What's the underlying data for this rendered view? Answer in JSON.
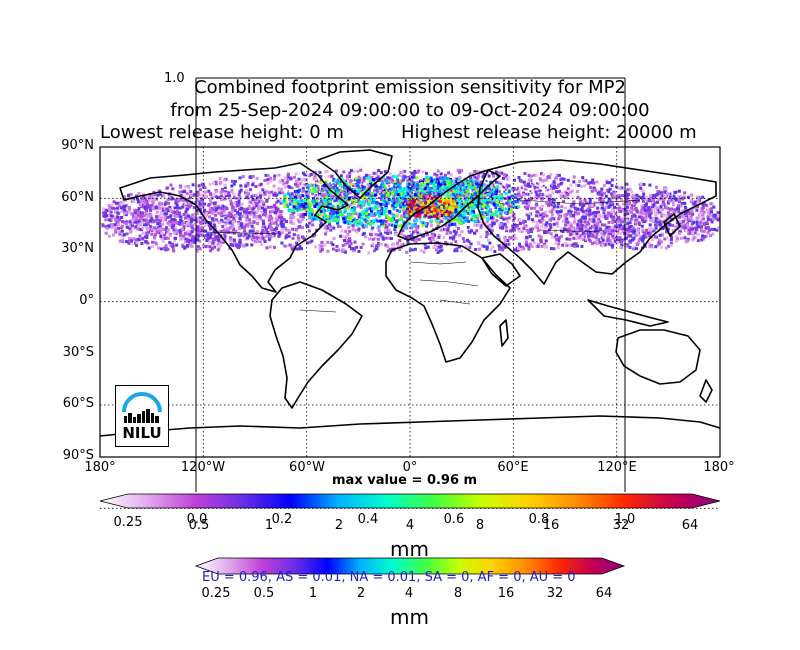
{
  "overlay_tick": "1.0",
  "title": {
    "line1": "Combined footprint emission sensitivity for MP2",
    "line2": "from 25-Sep-2024 09:00:00 to 09-Oct-2024 09:00:00",
    "line3_left": "Lowest release height: 0 m",
    "line3_right": "Highest release height: 20000 m"
  },
  "lat_labels": [
    "90°N",
    "60°N",
    "30°N",
    "0°",
    "30°S",
    "60°S",
    "90°S"
  ],
  "lon_labels": [
    "180°",
    "120°W",
    "60°W",
    "0°",
    "60°E",
    "120°E",
    "180°"
  ],
  "max_value_label": "max value = 0.96 m",
  "logo_text": "NILU",
  "colorbar_top": {
    "ticks": [
      "0.25",
      "0.5",
      "1",
      "2",
      "4",
      "8",
      "16",
      "32",
      "64"
    ],
    "overlay_ticks": [
      "0.0",
      "0.2",
      "0.4",
      "0.6",
      "0.8",
      "1.0"
    ],
    "unit": "mm"
  },
  "colorbar_bottom": {
    "ticks": [
      "0.25",
      "0.5",
      "1",
      "2",
      "4",
      "8",
      "16",
      "32",
      "64"
    ],
    "unit": "mm"
  },
  "stats_text": "EU = 0.96,  AS = 0.01,  NA = 0.01,  SA = 0,  AF = 0,  AU = 0",
  "colors": {
    "scale": [
      "#ffffff",
      "#e0a8ec",
      "#c040d8",
      "#6a2ee6",
      "#0000ff",
      "#00b4ff",
      "#00ffcc",
      "#40ff40",
      "#c8ff00",
      "#ffd200",
      "#ff8c00",
      "#ff2a00",
      "#c80050",
      "#8c0080"
    ],
    "stats": "#1f1fcf"
  }
}
